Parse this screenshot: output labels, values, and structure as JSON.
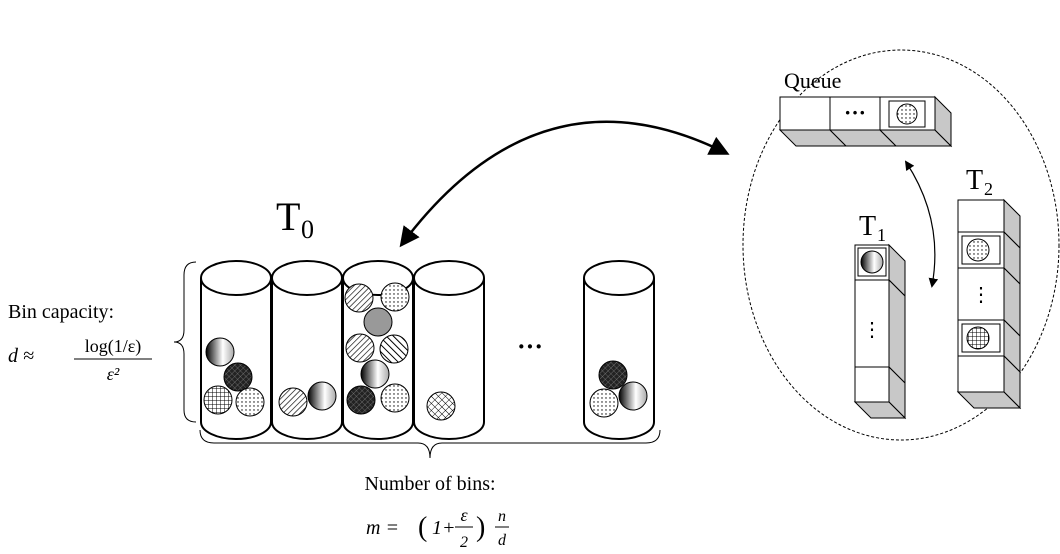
{
  "t0": {
    "base": "T",
    "sub": "0"
  },
  "queue": {
    "label": "Queue",
    "ellipsis": "···"
  },
  "t1": {
    "base": "T",
    "sub": "1",
    "dots": "⋮"
  },
  "t2": {
    "base": "T",
    "sub": "2",
    "dots": "⋮"
  },
  "bins_ellipsis": "···",
  "bin_capacity": {
    "label": "Bin capacity:",
    "lhs": "d ≈",
    "numerator": "log(1/ε)",
    "denominator": "ε²"
  },
  "number_of_bins": {
    "label": "Number of bins:",
    "lhs": "m =",
    "open": "(",
    "one_plus": "1+",
    "eps": "ε",
    "two": "2",
    "close": ")",
    "n": "n",
    "d": "d"
  }
}
